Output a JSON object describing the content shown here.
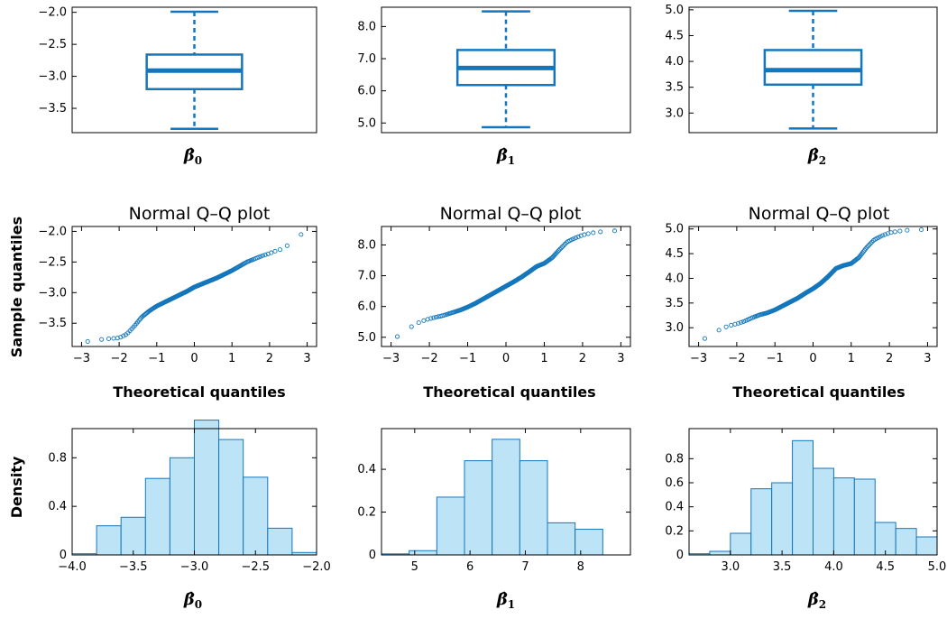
{
  "colors": {
    "accent": "#1477bd",
    "hist_fill": "#bde3f6",
    "hist_edge": "#1477bd",
    "axis": "#000000"
  },
  "labels": {
    "qq_title": "Normal Q–Q plot",
    "qq_xlabel": "Theoretical quantiles",
    "qq_ylabel": "Sample quantiles",
    "hist_ylabel": "Density",
    "beta0": "β̂",
    "beta1": "β̂",
    "beta2": "β̂",
    "sub0": "0",
    "sub1": "1",
    "sub2": "2"
  },
  "chart_data": [
    {
      "type": "box",
      "panel": "box-beta0",
      "xlabel": "β̂0",
      "ylim": [
        -3.88,
        -1.92
      ],
      "yticks": [
        -3.5,
        -3.0,
        -2.5,
        -2.0
      ],
      "ytick_labels": [
        "−3.5",
        "−3.0",
        "−2.5",
        "−2.0"
      ],
      "stats": {
        "min": -3.82,
        "q1": -3.2,
        "median": -2.91,
        "q3": -2.66,
        "max": -1.99
      }
    },
    {
      "type": "box",
      "panel": "box-beta1",
      "xlabel": "β̂1",
      "ylim": [
        4.7,
        8.6
      ],
      "yticks": [
        5.0,
        6.0,
        7.0,
        8.0
      ],
      "ytick_labels": [
        "5.0",
        "6.0",
        "7.0",
        "8.0"
      ],
      "stats": {
        "min": 4.87,
        "q1": 6.18,
        "median": 6.71,
        "q3": 7.27,
        "max": 8.47
      }
    },
    {
      "type": "box",
      "panel": "box-beta2",
      "xlabel": "β̂2",
      "ylim": [
        2.62,
        5.05
      ],
      "yticks": [
        3.0,
        3.5,
        4.0,
        4.5,
        5.0
      ],
      "ytick_labels": [
        "3.0",
        "3.5",
        "4.0",
        "4.5",
        "5.0"
      ],
      "stats": {
        "min": 2.7,
        "q1": 3.55,
        "median": 3.83,
        "q3": 4.22,
        "max": 4.98
      }
    },
    {
      "type": "scatter",
      "panel": "qq-beta0",
      "title": "Normal Q–Q plot",
      "xlabel": "Theoretical quantiles",
      "ylabel": "Sample quantiles",
      "xlim": [
        -3.25,
        3.25
      ],
      "ylim": [
        -3.88,
        -1.92
      ],
      "xticks": [
        -3,
        -2,
        -1,
        0,
        1,
        2,
        3
      ],
      "xtick_labels": [
        "−3",
        "−2",
        "−1",
        "0",
        "1",
        "2",
        "3"
      ],
      "yticks": [
        -3.5,
        -3.0,
        -2.5,
        -2.0
      ],
      "ytick_labels": [
        "−3.5",
        "−3.0",
        "−2.5",
        "−2.0"
      ],
      "curve_x": [
        -3.0,
        -2.7,
        -2.4,
        -2.2,
        -2.0,
        -1.8,
        -1.6,
        -1.4,
        -1.2,
        -1.0,
        -0.8,
        -0.6,
        -0.4,
        -0.2,
        0.0,
        0.2,
        0.4,
        0.6,
        0.8,
        1.0,
        1.2,
        1.4,
        1.6,
        1.8,
        2.0,
        2.2,
        2.4,
        2.6,
        3.0
      ],
      "curve_y": [
        -3.82,
        -3.78,
        -3.76,
        -3.75,
        -3.74,
        -3.68,
        -3.55,
        -3.4,
        -3.3,
        -3.22,
        -3.16,
        -3.1,
        -3.04,
        -2.98,
        -2.91,
        -2.86,
        -2.81,
        -2.76,
        -2.7,
        -2.64,
        -2.57,
        -2.5,
        -2.45,
        -2.4,
        -2.36,
        -2.31,
        -2.28,
        -2.14,
        -1.99
      ]
    },
    {
      "type": "scatter",
      "panel": "qq-beta1",
      "title": "Normal Q–Q plot",
      "xlabel": "Theoretical quantiles",
      "xlim": [
        -3.25,
        3.25
      ],
      "ylim": [
        4.7,
        8.6
      ],
      "xticks": [
        -3,
        -2,
        -1,
        0,
        1,
        2,
        3
      ],
      "xtick_labels": [
        "−3",
        "−2",
        "−1",
        "0",
        "1",
        "2",
        "3"
      ],
      "yticks": [
        5.0,
        6.0,
        7.0,
        8.0
      ],
      "ytick_labels": [
        "5.0",
        "6.0",
        "7.0",
        "8.0"
      ],
      "curve_x": [
        -3.0,
        -2.7,
        -2.4,
        -2.2,
        -2.0,
        -1.8,
        -1.6,
        -1.4,
        -1.2,
        -1.0,
        -0.8,
        -0.6,
        -0.4,
        -0.2,
        0.0,
        0.2,
        0.4,
        0.6,
        0.8,
        1.0,
        1.2,
        1.4,
        1.6,
        1.8,
        2.0,
        2.2,
        2.4,
        2.6,
        3.0
      ],
      "curve_y": [
        4.87,
        5.15,
        5.4,
        5.52,
        5.6,
        5.66,
        5.72,
        5.8,
        5.88,
        5.98,
        6.1,
        6.24,
        6.38,
        6.52,
        6.66,
        6.8,
        6.95,
        7.12,
        7.3,
        7.4,
        7.58,
        7.85,
        8.1,
        8.22,
        8.32,
        8.38,
        8.42,
        8.44,
        8.47
      ]
    },
    {
      "type": "scatter",
      "panel": "qq-beta2",
      "title": "Normal Q–Q plot",
      "xlabel": "Theoretical quantiles",
      "xlim": [
        -3.25,
        3.25
      ],
      "ylim": [
        2.62,
        5.05
      ],
      "xticks": [
        -3,
        -2,
        -1,
        0,
        1,
        2,
        3
      ],
      "xtick_labels": [
        "−3",
        "−2",
        "−1",
        "0",
        "1",
        "2",
        "3"
      ],
      "yticks": [
        3.0,
        3.5,
        4.0,
        4.5,
        5.0
      ],
      "ytick_labels": [
        "3.0",
        "3.5",
        "4.0",
        "4.5",
        "5.0"
      ],
      "curve_x": [
        -3.0,
        -2.7,
        -2.4,
        -2.2,
        -2.0,
        -1.8,
        -1.6,
        -1.4,
        -1.2,
        -1.0,
        -0.8,
        -0.6,
        -0.4,
        -0.2,
        0.0,
        0.2,
        0.4,
        0.6,
        0.8,
        1.0,
        1.2,
        1.4,
        1.6,
        1.8,
        2.0,
        2.2,
        2.4,
        2.6,
        3.0
      ],
      "curve_y": [
        2.7,
        2.85,
        2.98,
        3.04,
        3.08,
        3.13,
        3.2,
        3.26,
        3.3,
        3.36,
        3.44,
        3.52,
        3.6,
        3.7,
        3.79,
        3.9,
        4.04,
        4.2,
        4.26,
        4.3,
        4.42,
        4.62,
        4.78,
        4.86,
        4.92,
        4.95,
        4.97,
        4.98,
        4.99
      ]
    },
    {
      "type": "bar",
      "panel": "hist-beta0",
      "xlabel": "β̂0",
      "ylabel": "Density",
      "xlim": [
        -4.0,
        -2.0
      ],
      "ylim": [
        0,
        1.04
      ],
      "xticks": [
        -4.0,
        -3.5,
        -3.0,
        -2.5,
        -2.0
      ],
      "xtick_labels": [
        "−4.0",
        "−3.5",
        "−3.0",
        "−2.5",
        "−2.0"
      ],
      "yticks": [
        0,
        0.4,
        0.8
      ],
      "ytick_labels": [
        "0",
        "0.4",
        "0.8"
      ],
      "bin_edges": [
        -4.0,
        -3.8,
        -3.6,
        -3.4,
        -3.2,
        -3.0,
        -2.8,
        -2.6,
        -2.4,
        -2.2,
        -2.0
      ],
      "values": [
        0.01,
        0.24,
        0.31,
        0.63,
        0.8,
        1.11,
        0.95,
        0.64,
        0.22,
        0.02
      ]
    },
    {
      "type": "bar",
      "panel": "hist-beta1",
      "xlabel": "β̂1",
      "xlim": [
        4.4,
        8.9
      ],
      "ylim": [
        0,
        0.59
      ],
      "xticks": [
        5,
        6,
        7,
        8
      ],
      "xtick_labels": [
        "5",
        "6",
        "7",
        "8"
      ],
      "yticks": [
        0,
        0.2,
        0.4
      ],
      "ytick_labels": [
        "0",
        "0.2",
        "0.4"
      ],
      "bin_edges": [
        4.4,
        4.9,
        5.4,
        5.9,
        6.4,
        6.9,
        7.4,
        7.9,
        8.4,
        8.9
      ],
      "values": [
        0.005,
        0.02,
        0.27,
        0.44,
        0.54,
        0.44,
        0.15,
        0.12,
        0.0
      ]
    },
    {
      "type": "bar",
      "panel": "hist-beta2",
      "xlabel": "β̂2",
      "xlim": [
        2.6,
        5.0
      ],
      "ylim": [
        0,
        1.05
      ],
      "xticks": [
        3.0,
        3.5,
        4.0,
        4.5,
        5.0
      ],
      "xtick_labels": [
        "3.0",
        "3.5",
        "4.0",
        "4.5",
        "5.0"
      ],
      "yticks": [
        0,
        0.2,
        0.4,
        0.6,
        0.8
      ],
      "ytick_labels": [
        "0",
        "0.2",
        "0.4",
        "0.6",
        "0.8"
      ],
      "bin_edges": [
        2.6,
        2.8,
        3.0,
        3.2,
        3.4,
        3.6,
        3.8,
        4.0,
        4.2,
        4.4,
        4.6,
        4.8,
        5.0
      ],
      "values": [
        0.01,
        0.03,
        0.18,
        0.55,
        0.6,
        0.95,
        0.72,
        0.64,
        0.63,
        0.27,
        0.22,
        0.15
      ]
    }
  ]
}
